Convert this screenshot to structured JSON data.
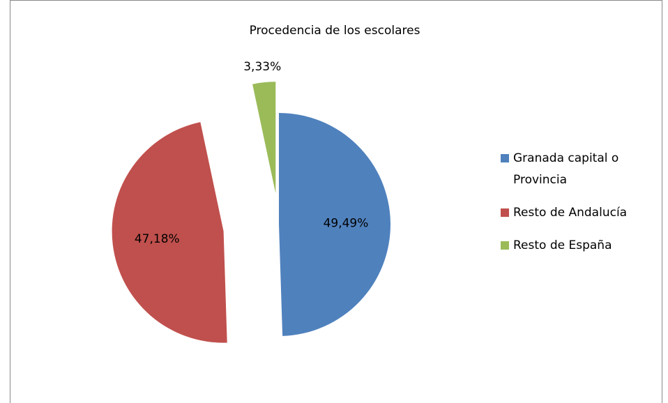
{
  "chart_data": {
    "type": "pie",
    "title": "Procedencia de los escolares",
    "categories": [
      "Granada capital o Provincia",
      "Resto de Andalucía",
      "Resto de España"
    ],
    "values": [
      49.49,
      47.18,
      3.33
    ],
    "value_labels": [
      "49,49%",
      "47,18%",
      "3,33%"
    ],
    "colors": [
      "#4f81bd",
      "#c0504d",
      "#9bbb59"
    ],
    "legend": "right"
  }
}
